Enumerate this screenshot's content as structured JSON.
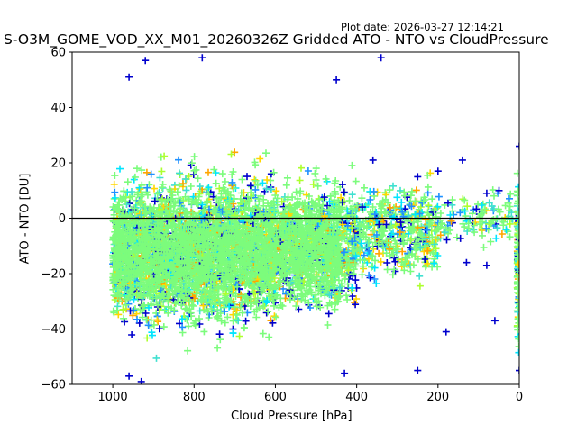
{
  "header": {
    "plot_date": "Plot date: 2026-03-27 12:14:21",
    "title": "S-O3M_GOME_VOD_XX_M01_20260326Z Gridded ATO - NTO vs CloudPressure"
  },
  "chart_data": {
    "type": "scatter",
    "title": "S-O3M_GOME_VOD_XX_M01_20260326Z Gridded ATO - NTO vs CloudPressure",
    "xlabel": "Cloud Pressure [hPa]",
    "ylabel": "ATO - NTO [DU]",
    "xlim": [
      1100,
      0
    ],
    "ylim": [
      -60,
      60
    ],
    "x_inverted": true,
    "x_ticks": [
      1000,
      800,
      600,
      400,
      200,
      0
    ],
    "y_ticks": [
      60,
      40,
      20,
      0,
      -20,
      -40,
      -60
    ],
    "reference_line_y": 0,
    "marker": "plus",
    "grid": false,
    "legend": "none",
    "colors": [
      "#0000cd",
      "#1e90ff",
      "#00e5ff",
      "#40e0d0",
      "#7cfc7c",
      "#adff2f",
      "#ffd700",
      "#ffa500"
    ],
    "dominant_color": "#7cfc7c",
    "clusters": [
      {
        "x_range": [
          1000,
          600
        ],
        "y_center": -12,
        "y_spread": 22,
        "density": "very high"
      },
      {
        "x_range": [
          600,
          400
        ],
        "y_center": -10,
        "y_spread": 18,
        "density": "high"
      },
      {
        "x_range": [
          400,
          200
        ],
        "y_center": -5,
        "y_spread": 14,
        "density": "medium"
      },
      {
        "x_range": [
          200,
          0
        ],
        "y_center": 0,
        "y_spread": 8,
        "density": "low"
      },
      {
        "x_range": [
          5,
          0
        ],
        "y_center": -15,
        "y_spread": 25,
        "density": "column"
      }
    ],
    "outliers": [
      {
        "x": 920,
        "y": 57
      },
      {
        "x": 780,
        "y": 58
      },
      {
        "x": 340,
        "y": 58
      },
      {
        "x": 960,
        "y": 51
      },
      {
        "x": 450,
        "y": 50
      },
      {
        "x": 140,
        "y": 21
      },
      {
        "x": 360,
        "y": 21
      },
      {
        "x": 200,
        "y": 17
      },
      {
        "x": 250,
        "y": 15
      },
      {
        "x": 80,
        "y": 9
      },
      {
        "x": 50,
        "y": 10
      },
      {
        "x": 0,
        "y": 26
      },
      {
        "x": 130,
        "y": -16
      },
      {
        "x": 80,
        "y": -17
      },
      {
        "x": 60,
        "y": -37
      },
      {
        "x": 180,
        "y": -41
      },
      {
        "x": 250,
        "y": -55
      },
      {
        "x": 960,
        "y": -57
      },
      {
        "x": 930,
        "y": -59
      },
      {
        "x": 430,
        "y": -56
      },
      {
        "x": 0,
        "y": -55
      }
    ]
  }
}
